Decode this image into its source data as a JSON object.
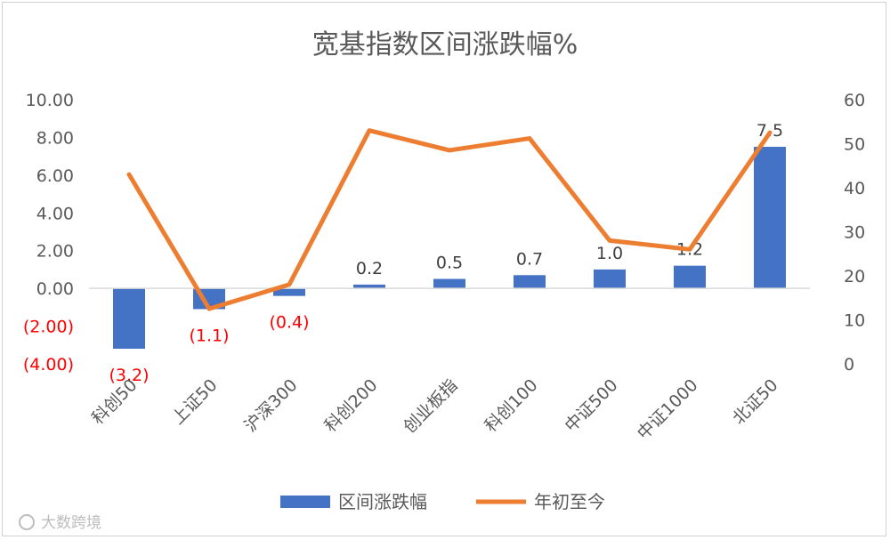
{
  "chart_data": {
    "type": "bar",
    "title": "宽基指数区间涨跌幅%",
    "categories": [
      "科创50",
      "上证50",
      "沪深300",
      "科创200",
      "创业板指",
      "科创100",
      "中证500",
      "中证1000",
      "北证50"
    ],
    "series": [
      {
        "name": "区间涨跌幅",
        "type": "bar",
        "axis": "left",
        "color": "#4472C4",
        "values": [
          -3.2,
          -1.1,
          -0.4,
          0.2,
          0.5,
          0.7,
          1.0,
          1.2,
          7.5
        ],
        "labels": [
          "(3.2)",
          "(1.1)",
          "(0.4)",
          "0.2",
          "0.5",
          "0.7",
          "1.0",
          "1.2",
          "7.5"
        ]
      },
      {
        "name": "年初至今",
        "type": "line",
        "axis": "right",
        "color": "#ED7D31",
        "values": [
          43,
          12.5,
          18,
          53,
          48.5,
          51.2,
          28,
          26,
          52.5
        ]
      }
    ],
    "y_left": {
      "lim": [
        -4,
        10
      ],
      "ticks": [
        10,
        8,
        6,
        4,
        2,
        0,
        -2,
        -4
      ],
      "tick_labels": [
        "10.00",
        "8.00",
        "6.00",
        "4.00",
        "2.00",
        "0.00",
        "(2.00)",
        "(4.00)"
      ]
    },
    "y_right": {
      "lim": [
        0,
        60
      ],
      "ticks": [
        60,
        50,
        40,
        30,
        20,
        10,
        0
      ],
      "tick_labels": [
        "60",
        "50",
        "40",
        "30",
        "20",
        "10",
        "0"
      ]
    },
    "negative_color": "#FF0000",
    "grid": false,
    "legend_position": "bottom"
  },
  "watermark": "大数跨境"
}
